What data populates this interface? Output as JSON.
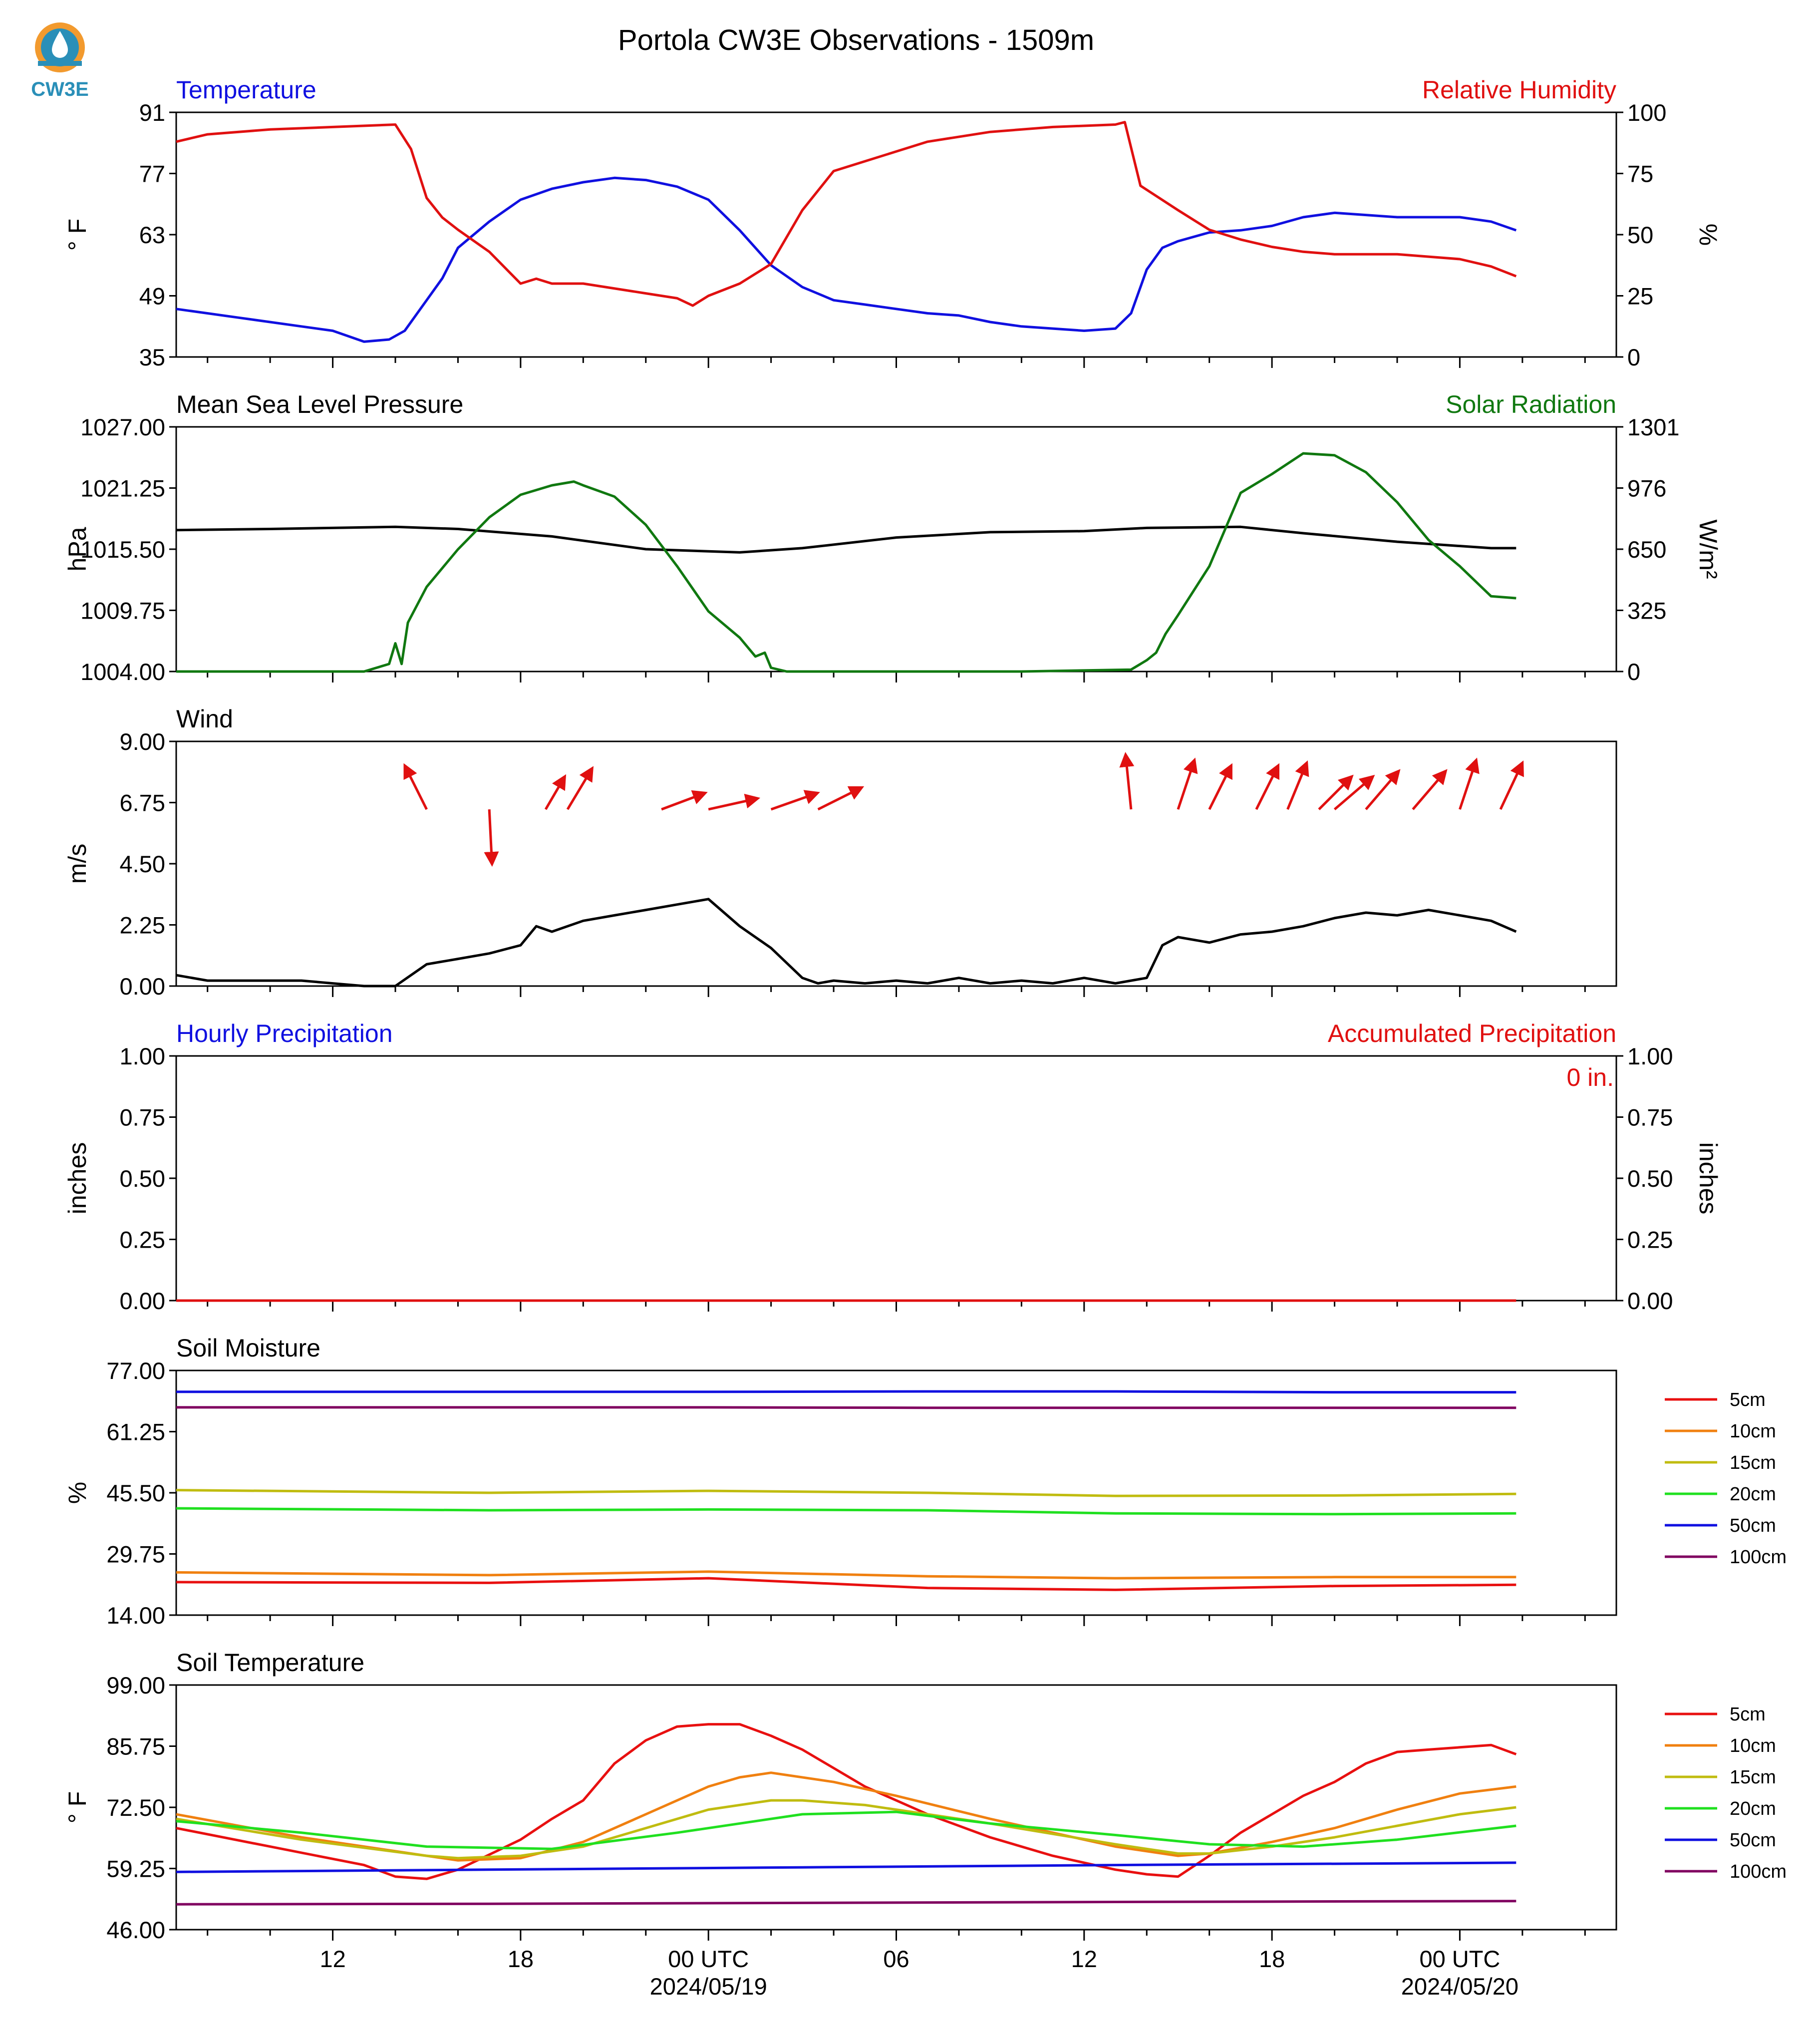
{
  "logo": {
    "text": "CW3E",
    "color": "#2a8fb8",
    "accent": "#f29a2e"
  },
  "title": "Portola CW3E Observations - 1509m",
  "time_axis": {
    "hours_shown": 46,
    "tick_labels": [
      "12",
      "18",
      "00 UTC",
      "06",
      "12",
      "18",
      "00 UTC"
    ],
    "tick_hours": [
      5,
      11,
      17,
      23,
      29,
      35,
      41
    ],
    "date_labels": [
      "2024/05/19",
      "2024/05/20"
    ],
    "date_label_hours": [
      17,
      41
    ]
  },
  "chart_data": [
    {
      "type": "line",
      "panel": "temperature-humidity",
      "left_title": "Temperature",
      "right_title": "Relative Humidity",
      "left_color": "#1010e0",
      "right_color": "#e01010",
      "ylabel_left": "° F",
      "ylabel_right": "%",
      "ylim_left": [
        35,
        91
      ],
      "ylim_right": [
        0,
        100
      ],
      "yticks_left": [
        "91",
        "77",
        "63",
        "49",
        "35"
      ],
      "yticks_right": [
        "100",
        "75",
        "50",
        "25",
        "0"
      ],
      "series": [
        {
          "axis": "left",
          "color": "#1010e0",
          "x": [
            0,
            2,
            4,
            5,
            6,
            6.8,
            7.3,
            8,
            8.5,
            9,
            10,
            11,
            12,
            13,
            14,
            15,
            16,
            17,
            18,
            19,
            20,
            21,
            22,
            23,
            24,
            25,
            26,
            27,
            28,
            29,
            30,
            30.5,
            31,
            31.5,
            32,
            33,
            34,
            35,
            36,
            37,
            38,
            39,
            40,
            41,
            42,
            42.8
          ],
          "y": [
            46,
            44,
            42,
            41,
            38.5,
            39,
            41,
            48,
            53,
            60,
            66,
            71,
            73.5,
            75,
            76,
            75.5,
            74,
            71,
            64,
            56,
            51,
            48,
            47,
            46,
            45,
            44.5,
            43,
            42,
            41.5,
            41,
            41.5,
            45,
            55,
            60,
            61.5,
            63.5,
            64,
            65,
            67,
            68,
            67.5,
            67,
            67,
            67,
            66,
            64
          ]
        },
        {
          "axis": "right",
          "color": "#e01010",
          "x": [
            0,
            1,
            3,
            5,
            7,
            7.5,
            8,
            8.5,
            9,
            10,
            11,
            11.5,
            12,
            13,
            15,
            16,
            16.5,
            17,
            18,
            19,
            20,
            21,
            22,
            23,
            24,
            26,
            28,
            30,
            30.3,
            30.8,
            32,
            33,
            34,
            35,
            36,
            37,
            38,
            39,
            40,
            41,
            42,
            42.8
          ],
          "y": [
            88,
            91,
            93,
            94,
            95,
            85,
            65,
            57,
            52,
            43,
            30,
            32,
            30,
            30,
            26,
            24,
            21,
            25,
            30,
            38,
            60,
            76,
            80,
            84,
            88,
            92,
            94,
            95,
            96,
            70,
            60,
            52,
            48,
            45,
            43,
            42,
            42,
            42,
            41,
            40,
            37,
            33
          ]
        }
      ]
    },
    {
      "type": "line",
      "panel": "pressure-solar",
      "left_title": "Mean Sea Level Pressure",
      "right_title": "Solar Radiation",
      "left_color": "#000000",
      "right_color": "#107810",
      "ylabel_left": "hPa",
      "ylabel_right": "W/m²",
      "ylim_left": [
        1004,
        1027
      ],
      "ylim_right": [
        0,
        1301
      ],
      "yticks_left": [
        "1027.00",
        "1021.25",
        "1015.50",
        "1009.75",
        "1004.00"
      ],
      "yticks_right": [
        "1301",
        "976",
        "650",
        "325",
        "0"
      ],
      "series": [
        {
          "axis": "left",
          "color": "#000000",
          "x": [
            0,
            3,
            7,
            9,
            12,
            15,
            18,
            20,
            23,
            26,
            29,
            31,
            34,
            36,
            39,
            42,
            42.8
          ],
          "y": [
            1017.3,
            1017.4,
            1017.6,
            1017.4,
            1016.7,
            1015.5,
            1015.2,
            1015.6,
            1016.6,
            1017.1,
            1017.2,
            1017.5,
            1017.6,
            1017.0,
            1016.2,
            1015.6,
            1015.6
          ]
        },
        {
          "axis": "right",
          "color": "#107810",
          "x": [
            0,
            6,
            6.8,
            7,
            7.2,
            7.4,
            8,
            9,
            10,
            11,
            12,
            12.7,
            13,
            14,
            15,
            16,
            17,
            18,
            18.5,
            18.8,
            19,
            19.5,
            20,
            21,
            27,
            30.5,
            31,
            31.3,
            31.6,
            32,
            33,
            34,
            35,
            36,
            37,
            38,
            39,
            40,
            41,
            42,
            42.8
          ],
          "y": [
            0,
            0,
            40,
            150,
            40,
            260,
            450,
            650,
            820,
            940,
            990,
            1010,
            990,
            930,
            780,
            560,
            320,
            180,
            80,
            100,
            20,
            0,
            0,
            0,
            0,
            10,
            60,
            100,
            200,
            300,
            560,
            950,
            1050,
            1160,
            1150,
            1060,
            900,
            700,
            560,
            400,
            390
          ]
        }
      ]
    },
    {
      "type": "line",
      "panel": "wind",
      "left_title": "Wind",
      "left_color": "#000000",
      "ylabel_left": "m/s",
      "ylim_left": [
        0,
        9
      ],
      "yticks_left": [
        "9.00",
        "6.75",
        "4.50",
        "2.25",
        "0.00"
      ],
      "series": [
        {
          "axis": "left",
          "color": "#000000",
          "x": [
            0,
            1,
            2,
            3,
            4,
            5,
            6,
            7,
            7.5,
            8,
            9,
            10,
            11,
            11.5,
            12,
            13,
            14,
            15,
            16,
            17,
            18,
            19,
            20,
            20.5,
            21,
            22,
            23,
            24,
            25,
            26,
            27,
            28,
            29,
            30,
            31,
            31.5,
            32,
            33,
            34,
            35,
            36,
            37,
            38,
            39,
            40,
            41,
            42,
            42.8
          ],
          "y": [
            0.4,
            0.2,
            0.2,
            0.2,
            0.2,
            0.1,
            0,
            0,
            0.4,
            0.8,
            1.0,
            1.2,
            1.5,
            2.2,
            2.0,
            2.4,
            2.6,
            2.8,
            3.0,
            3.2,
            2.2,
            1.4,
            0.3,
            0.1,
            0.2,
            0.1,
            0.2,
            0.1,
            0.3,
            0.1,
            0.2,
            0.1,
            0.3,
            0.1,
            0.3,
            1.5,
            1.8,
            1.6,
            1.9,
            2.0,
            2.2,
            2.5,
            2.7,
            2.6,
            2.8,
            2.6,
            2.4,
            2.0
          ]
        }
      ],
      "wind_vectors": {
        "color": "#e01010",
        "x": [
          8,
          10,
          11.8,
          12.5,
          15.5,
          17,
          19,
          20.5,
          30.5,
          32,
          33,
          34.5,
          35.5,
          36.5,
          37,
          38,
          39.5,
          41,
          42.3
        ],
        "u": [
          -0.4,
          0.05,
          0.35,
          0.45,
          0.8,
          0.9,
          0.85,
          0.8,
          -0.1,
          0.3,
          0.4,
          0.4,
          0.35,
          0.6,
          0.7,
          0.6,
          0.6,
          0.3,
          0.4
        ],
        "v": [
          -0.8,
          1.0,
          -0.6,
          -0.75,
          -0.3,
          -0.2,
          -0.3,
          -0.4,
          -1.0,
          -0.9,
          -0.8,
          -0.8,
          -0.85,
          -0.6,
          -0.6,
          -0.7,
          -0.7,
          -0.9,
          -0.85
        ]
      }
    },
    {
      "type": "line",
      "panel": "precipitation",
      "left_title": "Hourly Precipitation",
      "right_title": "Accumulated Precipitation",
      "left_color": "#1010e0",
      "right_color": "#e01010",
      "ylabel_left": "inches",
      "ylabel_right": "inches",
      "ylim_left": [
        0,
        1
      ],
      "ylim_right": [
        0,
        1
      ],
      "yticks_left": [
        "1.00",
        "0.75",
        "0.50",
        "0.25",
        "0.00"
      ],
      "yticks_right": [
        "1.00",
        "0.75",
        "0.50",
        "0.25",
        "0.00"
      ],
      "annotation": "0 in.",
      "series": [
        {
          "axis": "right",
          "color": "#e01010",
          "x": [
            0,
            42.8
          ],
          "y": [
            0,
            0
          ]
        }
      ]
    },
    {
      "type": "line",
      "panel": "soil-moisture",
      "left_title": "Soil Moisture",
      "left_color": "#000000",
      "ylabel_left": "%",
      "ylim_left": [
        14,
        77
      ],
      "yticks_left": [
        "77.00",
        "61.25",
        "45.50",
        "29.75",
        "14.00"
      ],
      "legend": [
        "5cm",
        "10cm",
        "15cm",
        "20cm",
        "50cm",
        "100cm"
      ],
      "series": [
        {
          "name": "5cm",
          "color": "#e81010",
          "x": [
            0,
            10,
            17,
            24,
            30,
            37,
            42.8
          ],
          "y": [
            22.5,
            22.3,
            23.5,
            21.0,
            20.5,
            21.5,
            21.8
          ]
        },
        {
          "name": "10cm",
          "color": "#f08010",
          "x": [
            0,
            10,
            17,
            24,
            30,
            37,
            42.8
          ],
          "y": [
            25.0,
            24.3,
            25.2,
            24.0,
            23.5,
            23.8,
            23.8
          ]
        },
        {
          "name": "15cm",
          "color": "#c0bc10",
          "x": [
            0,
            10,
            17,
            24,
            30,
            37,
            42.8
          ],
          "y": [
            46.2,
            45.5,
            46.0,
            45.5,
            44.7,
            44.8,
            45.2
          ]
        },
        {
          "name": "20cm",
          "color": "#20e020",
          "x": [
            0,
            10,
            17,
            24,
            30,
            37,
            42.8
          ],
          "y": [
            41.5,
            41.0,
            41.2,
            41.0,
            40.2,
            40.0,
            40.2
          ]
        },
        {
          "name": "50cm",
          "color": "#1010e0",
          "x": [
            0,
            10,
            17,
            24,
            30,
            37,
            42.8
          ],
          "y": [
            71.5,
            71.5,
            71.5,
            71.6,
            71.6,
            71.4,
            71.4
          ]
        },
        {
          "name": "100cm",
          "color": "#800060",
          "x": [
            0,
            10,
            17,
            24,
            30,
            37,
            42.8
          ],
          "y": [
            67.5,
            67.5,
            67.5,
            67.4,
            67.4,
            67.4,
            67.4
          ]
        }
      ]
    },
    {
      "type": "line",
      "panel": "soil-temperature",
      "left_title": "Soil Temperature",
      "left_color": "#000000",
      "ylabel_left": "° F",
      "ylim_left": [
        46,
        99
      ],
      "yticks_left": [
        "99.00",
        "85.75",
        "72.50",
        "59.25",
        "46.00"
      ],
      "legend": [
        "5cm",
        "10cm",
        "15cm",
        "20cm",
        "50cm",
        "100cm"
      ],
      "series": [
        {
          "name": "5cm",
          "color": "#e81010",
          "x": [
            0,
            3,
            6,
            7,
            8,
            9,
            11,
            12,
            13,
            14,
            15,
            16,
            17,
            18,
            19,
            20,
            21,
            22,
            24,
            26,
            28,
            29,
            30,
            31,
            32,
            33,
            34,
            35,
            36,
            37,
            38,
            39,
            40,
            41,
            42,
            42.8
          ],
          "y": [
            68,
            64,
            60,
            57.5,
            57,
            59,
            65.5,
            70,
            74,
            82,
            87,
            90,
            90.5,
            90.5,
            88,
            85,
            81,
            77,
            71,
            66,
            62,
            60.5,
            59,
            58,
            57.5,
            62,
            67,
            71,
            75,
            78,
            82,
            84.5,
            85,
            85.5,
            86,
            84
          ]
        },
        {
          "name": "10cm",
          "color": "#f08010",
          "x": [
            0,
            4,
            8,
            9,
            11,
            13,
            15,
            17,
            18,
            19,
            21,
            23,
            26,
            30,
            32,
            33,
            35,
            37,
            39,
            41,
            42.8
          ],
          "y": [
            71,
            66,
            62,
            61,
            61.5,
            65,
            71,
            77,
            79,
            80,
            78,
            75,
            70,
            64,
            62,
            62.5,
            65,
            68,
            72,
            75.5,
            77
          ]
        },
        {
          "name": "15cm",
          "color": "#c0bc10",
          "x": [
            0,
            4,
            8,
            9,
            11,
            13,
            15,
            17,
            19,
            20,
            22,
            24,
            26,
            30,
            32,
            33,
            35,
            37,
            39,
            41,
            42.8
          ],
          "y": [
            70,
            65.5,
            62,
            61.5,
            62,
            64,
            68,
            72,
            74,
            74,
            73,
            71,
            69,
            64.5,
            62.5,
            62.5,
            64,
            66,
            68.5,
            71,
            72.5
          ]
        },
        {
          "name": "20cm",
          "color": "#20e020",
          "x": [
            0,
            4,
            8,
            12,
            16,
            20,
            23,
            26,
            30,
            33,
            36,
            39,
            42.8
          ],
          "y": [
            69.5,
            67,
            64,
            63.5,
            67,
            71,
            71.5,
            69,
            66.5,
            64.5,
            64,
            65.5,
            68.5
          ]
        },
        {
          "name": "50cm",
          "color": "#1010e0",
          "x": [
            0,
            10,
            20,
            30,
            42.8
          ],
          "y": [
            58.5,
            59,
            59.5,
            60,
            60.5
          ]
        },
        {
          "name": "100cm",
          "color": "#800060",
          "x": [
            0,
            10,
            20,
            30,
            42.8
          ],
          "y": [
            51.5,
            51.6,
            51.8,
            52,
            52.2
          ]
        }
      ]
    }
  ]
}
